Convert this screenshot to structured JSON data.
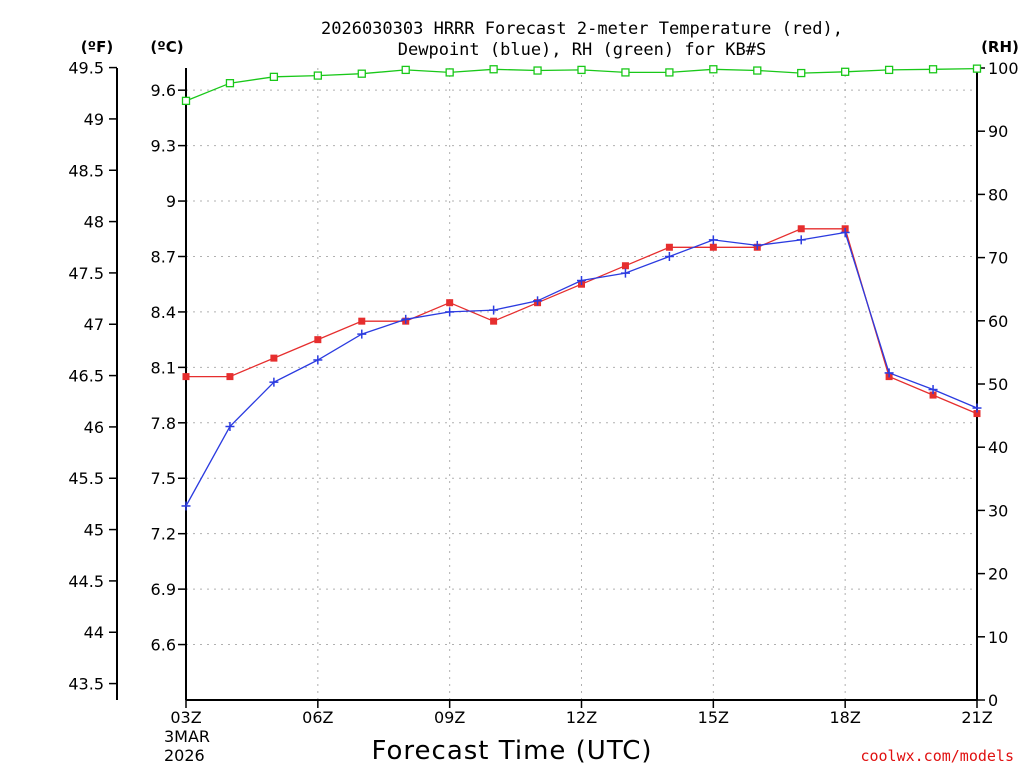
{
  "title_line1": "2026030303 HRRR Forecast 2-meter Temperature (red),",
  "title_line2": "Dewpoint (blue), RH (green) for KB#S",
  "unit_f": "(ºF)",
  "unit_c": "(ºC)",
  "unit_rh": "(RH)",
  "credit": "coolwx.com/models",
  "colors": {
    "temp": "#e62e2e",
    "dew": "#2b3be0",
    "rh": "#19c819"
  },
  "chart_data": {
    "type": "line",
    "title": "2026030303 HRRR Forecast 2-meter Temperature (red), Dewpoint (blue), RH (green) for KB#S",
    "xlabel": "Forecast Time (UTC)",
    "x": [
      3,
      4,
      5,
      6,
      7,
      8,
      9,
      10,
      11,
      12,
      13,
      14,
      15,
      16,
      17,
      18,
      19,
      20,
      21
    ],
    "x_range": [
      3,
      21
    ],
    "x_ticks": [
      {
        "value": 3,
        "label": "03Z"
      },
      {
        "value": 6,
        "label": "06Z"
      },
      {
        "value": 9,
        "label": "09Z"
      },
      {
        "value": 12,
        "label": "12Z"
      },
      {
        "value": 15,
        "label": "15Z"
      },
      {
        "value": 18,
        "label": "18Z"
      },
      {
        "value": 21,
        "label": "21Z"
      }
    ],
    "x_date_label": [
      "3MAR",
      "2026"
    ],
    "y_celsius": {
      "label": "(ºC)",
      "range": [
        6.3,
        9.72
      ],
      "ticks": [
        "6.6",
        "6.9",
        "7.2",
        "7.5",
        "7.8",
        "8.1",
        "8.4",
        "8.7",
        "9",
        "9.3",
        "9.6"
      ]
    },
    "y_fahrenheit": {
      "label": "(ºF)",
      "ticks": [
        "43.5",
        "44",
        "44.5",
        "45",
        "45.5",
        "46",
        "46.5",
        "47",
        "47.5",
        "48",
        "48.5",
        "49",
        "49.5"
      ]
    },
    "y_rh": {
      "label": "(RH)",
      "range": [
        0,
        100
      ],
      "ticks": [
        "0",
        "10",
        "20",
        "30",
        "40",
        "50",
        "60",
        "70",
        "80",
        "90",
        "100"
      ]
    },
    "grid": true,
    "series": [
      {
        "name": "Temperature (red)",
        "axis": "celsius",
        "marker": "filled-square",
        "values": [
          8.05,
          8.05,
          8.15,
          8.25,
          8.35,
          8.35,
          8.45,
          8.35,
          8.45,
          8.55,
          8.65,
          8.75,
          8.75,
          8.75,
          8.85,
          8.85,
          8.05,
          7.95,
          7.85
        ]
      },
      {
        "name": "Dewpoint (blue)",
        "axis": "celsius",
        "marker": "plus",
        "values": [
          7.35,
          7.78,
          8.02,
          8.14,
          8.28,
          8.36,
          8.4,
          8.41,
          8.46,
          8.57,
          8.61,
          8.7,
          8.79,
          8.76,
          8.79,
          8.83,
          8.07,
          7.98,
          7.88
        ]
      },
      {
        "name": "RH (green)",
        "axis": "rh",
        "marker": "open-square",
        "values": [
          94.8,
          97.6,
          98.6,
          98.8,
          99.1,
          99.7,
          99.3,
          99.8,
          99.6,
          99.7,
          99.3,
          99.3,
          99.8,
          99.6,
          99.2,
          99.4,
          99.7,
          99.8,
          99.9
        ]
      }
    ]
  }
}
